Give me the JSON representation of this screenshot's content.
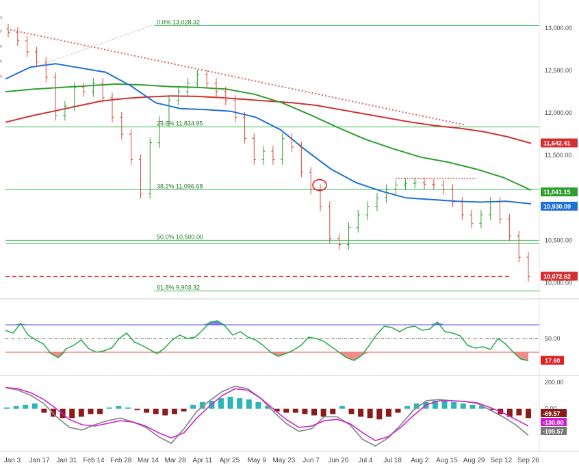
{
  "chart_data": {
    "type": "line",
    "price_panel": {
      "y_ticks": [
        "13,000.00",
        "12,500.00",
        "12,000.00",
        "11,500.00",
        "10,500.00",
        "10,000.00"
      ],
      "y_tick_values": [
        13000,
        12500,
        12000,
        11500,
        10500,
        10000
      ],
      "ylim": [
        9850,
        13250
      ],
      "fib_levels": [
        {
          "label": "0.0% 13,028.32",
          "value": 13028.32
        },
        {
          "label": "23.6% 11,834.95",
          "value": 11834.95
        },
        {
          "label": "38.2% 11,096.68",
          "value": 11096.68
        },
        {
          "label": "50.0% 10,500.00",
          "value": 10500.0
        },
        {
          "label": "61.8% 9,903.32",
          "value": 9903.32
        }
      ],
      "price_tags": [
        {
          "text": "11,642.41",
          "value": 11642.41,
          "color": "#d32f2f"
        },
        {
          "text": "11,041.15",
          "value": 11041.15,
          "color": "#2e9e2e"
        },
        {
          "text": "10,930.09",
          "value": 10930.09,
          "color": "#1e6fd6"
        },
        {
          "text": "10,072.62",
          "value": 10072.62,
          "color": "#d32f2f"
        }
      ],
      "support_line": 10072.62,
      "ma_red": [
        11890,
        11960,
        12020,
        12080,
        12140,
        12170,
        12190,
        12200,
        12195,
        12180,
        12160,
        12140,
        12120,
        12090,
        12040,
        11990,
        11940,
        11890,
        11850,
        11820,
        11780,
        11720,
        11642
      ],
      "ma_green": [
        12250,
        12280,
        12300,
        12320,
        12340,
        12330,
        12310,
        12300,
        12280,
        12220,
        12120,
        11980,
        11830,
        11690,
        11580,
        11480,
        11420,
        11340,
        11240,
        11090
      ],
      "ma_blue": [
        12400,
        12540,
        12580,
        12530,
        12480,
        12320,
        12120,
        12050,
        12040,
        12020,
        11950,
        11800,
        11560,
        11340,
        11180,
        11080,
        11000,
        10980,
        10960,
        10950,
        10960,
        10930
      ],
      "price_close": [
        12950,
        12850,
        12720,
        12600,
        12420,
        11970,
        12080,
        12300,
        12250,
        12350,
        12180,
        11950,
        11750,
        11450,
        11050,
        11650,
        11900,
        12150,
        12250,
        12350,
        12450,
        12350,
        12250,
        12150,
        11950,
        11700,
        11450,
        11550,
        11450,
        11700,
        11600,
        11300,
        11100,
        10900,
        10520,
        10450,
        10650,
        10800,
        10900,
        11000,
        11100,
        11150,
        11170,
        11180,
        11160,
        11150,
        11100,
        10950,
        10800,
        10700,
        10800,
        10950,
        10750,
        10550,
        10300,
        10072
      ]
    },
    "rsi_panel": {
      "y_ticks": [
        "50.00"
      ],
      "levels": [
        70,
        50,
        30
      ],
      "current": {
        "text": "17.60",
        "value": 17.6
      },
      "values": [
        62,
        58,
        72,
        55,
        48,
        42,
        28,
        22,
        35,
        40,
        48,
        35,
        30,
        32,
        36,
        50,
        58,
        45,
        40,
        34,
        28,
        36,
        48,
        55,
        50,
        52,
        62,
        74,
        76,
        68,
        55,
        60,
        52,
        48,
        40,
        30,
        24,
        28,
        33,
        40,
        52,
        50,
        46,
        38,
        30,
        22,
        18,
        25,
        40,
        56,
        68,
        66,
        60,
        66,
        68,
        62,
        64,
        74,
        60,
        58,
        54,
        40,
        36,
        38,
        34,
        50,
        42,
        30,
        20,
        17.6
      ]
    },
    "macd_panel": {
      "y_ticks": [
        "200.00",
        "0.00"
      ],
      "values_tags": [
        {
          "text": "-69.57",
          "value": -69.57,
          "color": "#8b1a1a"
        },
        {
          "text": "-130.00",
          "value": -130.0,
          "color": "#cc22cc"
        },
        {
          "text": "-199.57",
          "value": -199.57,
          "color": "#777777"
        }
      ],
      "ylim": [
        -300,
        230
      ],
      "macd": [
        160,
        140,
        100,
        40,
        -60,
        -140,
        -160,
        -120,
        -90,
        -70,
        -100,
        -140,
        -210,
        -260,
        -150,
        -20,
        60,
        130,
        170,
        150,
        80,
        -20,
        -110,
        -170,
        -150,
        -60,
        -60,
        -120,
        -230,
        -280,
        -220,
        -120,
        -10,
        60,
        70,
        60,
        55,
        40,
        -10,
        -60,
        -120,
        -200
      ],
      "signal": [
        160,
        150,
        120,
        70,
        0,
        -80,
        -120,
        -130,
        -110,
        -90,
        -100,
        -130,
        -180,
        -220,
        -180,
        -70,
        20,
        100,
        150,
        140,
        80,
        0,
        -80,
        -140,
        -130,
        -90,
        -80,
        -110,
        -180,
        -240,
        -210,
        -140,
        -50,
        30,
        60,
        60,
        55,
        45,
        10,
        -30,
        -80,
        -130
      ],
      "histogram": [
        10,
        20,
        30,
        40,
        -30,
        -60,
        -70,
        -70,
        -60,
        -40,
        -40,
        10,
        20,
        10,
        -10,
        -30,
        -40,
        -50,
        -40,
        -20,
        30,
        50,
        60,
        80,
        90,
        80,
        70,
        50,
        20,
        -20,
        -30,
        -30,
        -40,
        -50,
        -60,
        -40,
        20,
        -40,
        -60,
        -70,
        -80,
        -60,
        -30,
        20,
        40,
        50,
        60,
        60,
        50,
        40,
        30,
        20,
        -10,
        -40,
        -60,
        -50,
        -70
      ]
    },
    "x_ticks": [
      "Jan 3",
      "Jan 17",
      "Jan 31",
      "Feb 14",
      "Feb 28",
      "Mar 14",
      "Mar 28",
      "Apr 11",
      "Apr 25",
      "May 9",
      "May 23",
      "Jun 7",
      "Jun 20",
      "Jul 4",
      "Jul 18",
      "Aug 2",
      "Aug 15",
      "Aug 29",
      "Sep 12",
      "Sep 26"
    ],
    "grid": false
  }
}
